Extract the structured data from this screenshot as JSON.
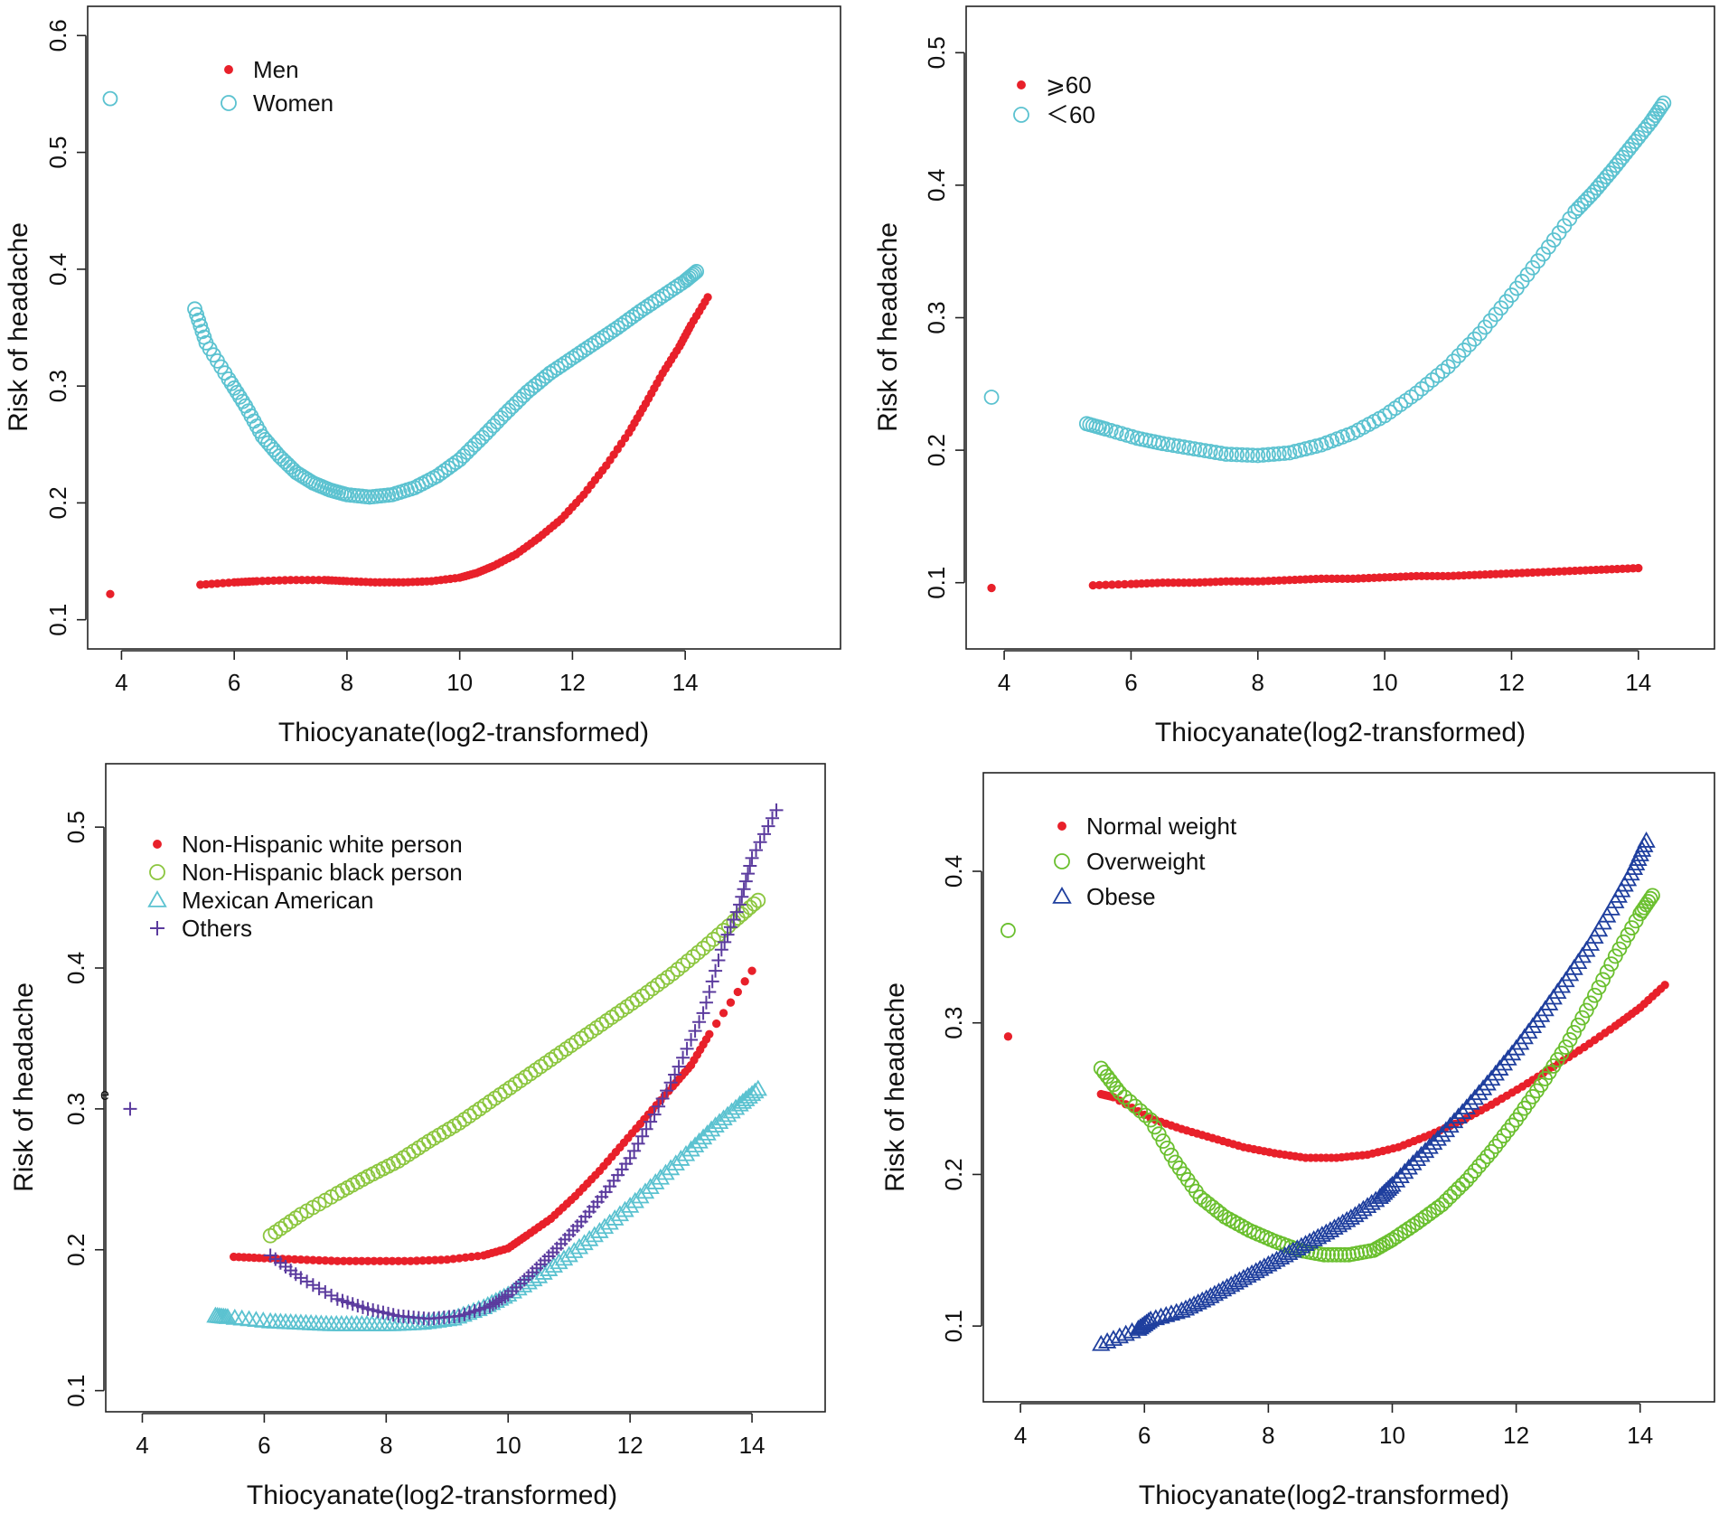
{
  "chart_data": [
    {
      "type": "scatter",
      "panel": "top-left",
      "xlabel": "Thiocyanate(log2-transformed)",
      "ylabel": "Risk of headache",
      "xlim": [
        3.4,
        15.2
      ],
      "ylim": [
        0.075,
        0.625
      ],
      "xticks": [
        4,
        6,
        8,
        10,
        12,
        14
      ],
      "yticks": [
        0.1,
        0.2,
        0.3,
        0.4,
        0.5,
        0.6
      ],
      "ytick_labels": [
        "0.1",
        "0.2",
        "0.3",
        "0.4",
        "0.5",
        "0.6"
      ],
      "legend_position": "top-left",
      "series": [
        {
          "name": "Men",
          "marker": "dot",
          "color": "#e8202a",
          "x": [
            3.8,
            5.4,
            6.0,
            6.4,
            7.0,
            7.6,
            8.0,
            8.5,
            9.0,
            9.5,
            10.0,
            10.3,
            10.6,
            11.0,
            11.4,
            11.8,
            12.2,
            12.6,
            13.0,
            13.3,
            13.6,
            13.9,
            14.1,
            14.4
          ],
          "y": [
            0.122,
            0.13,
            0.132,
            0.133,
            0.134,
            0.134,
            0.133,
            0.132,
            0.132,
            0.133,
            0.136,
            0.14,
            0.146,
            0.156,
            0.17,
            0.186,
            0.207,
            0.232,
            0.26,
            0.285,
            0.311,
            0.334,
            0.352,
            0.376
          ]
        },
        {
          "name": "Women",
          "marker": "circle",
          "color": "#5bc2d0",
          "x": [
            3.8,
            5.3,
            5.5,
            5.9,
            6.2,
            6.5,
            6.8,
            7.1,
            7.4,
            7.7,
            8.0,
            8.4,
            8.8,
            9.2,
            9.6,
            10.0,
            10.4,
            10.8,
            11.2,
            11.6,
            12.0,
            12.4,
            12.8,
            13.2,
            13.6,
            14.0,
            14.2
          ],
          "y": [
            0.546,
            0.366,
            0.337,
            0.306,
            0.283,
            0.257,
            0.24,
            0.226,
            0.217,
            0.211,
            0.207,
            0.205,
            0.207,
            0.213,
            0.223,
            0.237,
            0.256,
            0.276,
            0.295,
            0.311,
            0.324,
            0.337,
            0.35,
            0.364,
            0.377,
            0.39,
            0.398
          ]
        }
      ]
    },
    {
      "type": "scatter",
      "panel": "top-right",
      "xlabel": "Thiocyanate(log2-transformed)",
      "ylabel": "Risk of headache",
      "xlim": [
        3.4,
        15.2
      ],
      "ylim": [
        0.05,
        0.535
      ],
      "xticks": [
        4,
        6,
        8,
        10,
        12,
        14
      ],
      "yticks": [
        0.1,
        0.2,
        0.3,
        0.4,
        0.5
      ],
      "ytick_labels": [
        "0.1",
        "0.2",
        "0.3",
        "0.4",
        "0.5"
      ],
      "legend_position": "top-left",
      "series": [
        {
          "name": "⩾60",
          "marker": "dot",
          "color": "#e8202a",
          "x": [
            3.8,
            5.4,
            6.0,
            6.5,
            7.0,
            7.5,
            8.0,
            8.5,
            9.0,
            9.5,
            10.0,
            10.5,
            11.0,
            11.5,
            12.0,
            12.5,
            13.0,
            13.5,
            14.0
          ],
          "y": [
            0.096,
            0.098,
            0.099,
            0.1,
            0.1,
            0.101,
            0.101,
            0.102,
            0.103,
            0.103,
            0.104,
            0.105,
            0.105,
            0.106,
            0.107,
            0.108,
            0.109,
            0.11,
            0.111
          ]
        },
        {
          "name": "＜60",
          "marker": "circle",
          "color": "#5bc2d0",
          "x": [
            3.8,
            5.3,
            5.6,
            6.1,
            6.5,
            7.0,
            7.5,
            8.0,
            8.5,
            9.0,
            9.5,
            10.0,
            10.5,
            11.0,
            11.5,
            12.0,
            12.5,
            13.0,
            13.3,
            13.6,
            13.9,
            14.2,
            14.4
          ],
          "y": [
            0.24,
            0.22,
            0.216,
            0.209,
            0.205,
            0.201,
            0.197,
            0.196,
            0.198,
            0.204,
            0.213,
            0.226,
            0.243,
            0.263,
            0.288,
            0.317,
            0.348,
            0.38,
            0.395,
            0.412,
            0.43,
            0.448,
            0.462
          ]
        }
      ]
    },
    {
      "type": "scatter",
      "panel": "bottom-left",
      "xlabel": "Thiocyanate(log2-transformed)",
      "ylabel": "Risk of headache",
      "xlim": [
        3.4,
        15.2
      ],
      "ylim": [
        0.085,
        0.545
      ],
      "xticks": [
        4,
        6,
        8,
        10,
        12,
        14
      ],
      "yticks": [
        0.1,
        0.2,
        0.3,
        0.4,
        0.5
      ],
      "ytick_labels": [
        "0.1",
        "0.2",
        "0.3",
        "0.4",
        "0.5"
      ],
      "legend_position": "top-left",
      "annotation": "e",
      "series": [
        {
          "name": "Non-Hispanic white person",
          "marker": "dot",
          "color": "#e8202a",
          "x": [
            5.5,
            6.0,
            6.6,
            7.2,
            7.8,
            8.4,
            9.0,
            9.6,
            10.0,
            10.3,
            10.7,
            11.1,
            11.5,
            11.9,
            12.3,
            12.7,
            13.0,
            13.3,
            14.0
          ],
          "y": [
            0.195,
            0.194,
            0.193,
            0.192,
            0.192,
            0.192,
            0.193,
            0.196,
            0.201,
            0.21,
            0.222,
            0.238,
            0.256,
            0.276,
            0.296,
            0.316,
            0.331,
            0.353,
            0.398
          ]
        },
        {
          "name": "Non-Hispanic black person",
          "marker": "circle",
          "color": "#8cc63f",
          "x": [
            6.1,
            6.6,
            7.2,
            7.7,
            8.2,
            8.7,
            9.2,
            9.7,
            10.2,
            10.7,
            11.2,
            11.7,
            12.2,
            12.7,
            13.2,
            13.7,
            14.1
          ],
          "y": [
            0.21,
            0.225,
            0.24,
            0.252,
            0.263,
            0.277,
            0.29,
            0.305,
            0.32,
            0.335,
            0.35,
            0.365,
            0.38,
            0.396,
            0.414,
            0.433,
            0.448
          ]
        },
        {
          "name": "Mexican American",
          "marker": "triangle",
          "color": "#5bc2d0",
          "x": [
            5.2,
            5.4,
            6.1,
            6.6,
            7.1,
            7.6,
            8.1,
            8.6,
            9.1,
            9.6,
            10.0,
            10.5,
            11.0,
            11.5,
            12.0,
            12.5,
            13.0,
            13.4,
            13.8,
            14.1
          ],
          "y": [
            0.153,
            0.152,
            0.149,
            0.148,
            0.147,
            0.147,
            0.147,
            0.148,
            0.151,
            0.159,
            0.168,
            0.181,
            0.196,
            0.213,
            0.231,
            0.251,
            0.271,
            0.288,
            0.303,
            0.314
          ]
        },
        {
          "name": "Others",
          "marker": "plus",
          "color": "#5b3b9e",
          "x": [
            3.8,
            6.1,
            6.6,
            7.2,
            7.7,
            8.2,
            8.7,
            9.2,
            9.7,
            10.0,
            10.4,
            10.8,
            11.2,
            11.6,
            12.0,
            12.4,
            12.8,
            13.2,
            13.5,
            13.8,
            14.0,
            14.4
          ],
          "y": [
            0.3,
            0.196,
            0.18,
            0.165,
            0.158,
            0.153,
            0.151,
            0.153,
            0.16,
            0.168,
            0.184,
            0.201,
            0.22,
            0.241,
            0.265,
            0.296,
            0.33,
            0.368,
            0.413,
            0.445,
            0.478,
            0.512
          ]
        }
      ]
    },
    {
      "type": "scatter",
      "panel": "bottom-right",
      "xlabel": "Thiocyanate(log2-transformed)",
      "ylabel": "Risk of headache",
      "xlim": [
        3.4,
        15.2
      ],
      "ylim": [
        0.05,
        0.465
      ],
      "xticks": [
        4,
        6,
        8,
        10,
        12,
        14
      ],
      "yticks": [
        0.1,
        0.2,
        0.3,
        0.4
      ],
      "ytick_labels": [
        "0.1",
        "0.2",
        "0.3",
        "0.4"
      ],
      "legend_position": "top-left",
      "series": [
        {
          "name": "Normal weight",
          "marker": "dot",
          "color": "#e8202a",
          "x": [
            3.8,
            5.3,
            5.5,
            6.1,
            6.6,
            7.1,
            7.6,
            8.1,
            8.6,
            9.1,
            9.6,
            10.1,
            10.6,
            11.1,
            11.6,
            12.1,
            12.6,
            13.1,
            13.6,
            14.0,
            14.4
          ],
          "y": [
            0.291,
            0.253,
            0.251,
            0.237,
            0.23,
            0.224,
            0.218,
            0.214,
            0.211,
            0.211,
            0.213,
            0.218,
            0.226,
            0.235,
            0.246,
            0.258,
            0.271,
            0.284,
            0.298,
            0.31,
            0.325
          ]
        },
        {
          "name": "Overweight",
          "marker": "circle",
          "color": "#6abf2e",
          "x": [
            3.8,
            5.3,
            5.6,
            6.1,
            6.5,
            6.9,
            7.3,
            7.7,
            8.1,
            8.5,
            8.9,
            9.3,
            9.7,
            10.0,
            10.4,
            10.8,
            11.2,
            11.6,
            12.0,
            12.4,
            12.8,
            13.2,
            13.6,
            14.0,
            14.2
          ],
          "y": [
            0.361,
            0.27,
            0.254,
            0.236,
            0.208,
            0.185,
            0.172,
            0.163,
            0.156,
            0.15,
            0.147,
            0.147,
            0.15,
            0.157,
            0.168,
            0.18,
            0.196,
            0.215,
            0.236,
            0.259,
            0.284,
            0.313,
            0.344,
            0.372,
            0.384
          ]
        },
        {
          "name": "Obese",
          "marker": "triangle",
          "color": "#1f3f9e",
          "x": [
            5.3,
            5.9,
            6.1,
            6.6,
            7.0,
            7.4,
            7.8,
            8.2,
            8.6,
            9.0,
            9.4,
            9.8,
            10.0,
            10.4,
            10.8,
            11.2,
            11.6,
            12.0,
            12.4,
            12.8,
            13.2,
            13.6,
            13.9,
            14.1
          ],
          "y": [
            0.088,
            0.098,
            0.104,
            0.11,
            0.118,
            0.127,
            0.136,
            0.145,
            0.154,
            0.163,
            0.173,
            0.185,
            0.193,
            0.21,
            0.226,
            0.244,
            0.263,
            0.283,
            0.305,
            0.328,
            0.352,
            0.38,
            0.402,
            0.42
          ]
        }
      ]
    }
  ]
}
